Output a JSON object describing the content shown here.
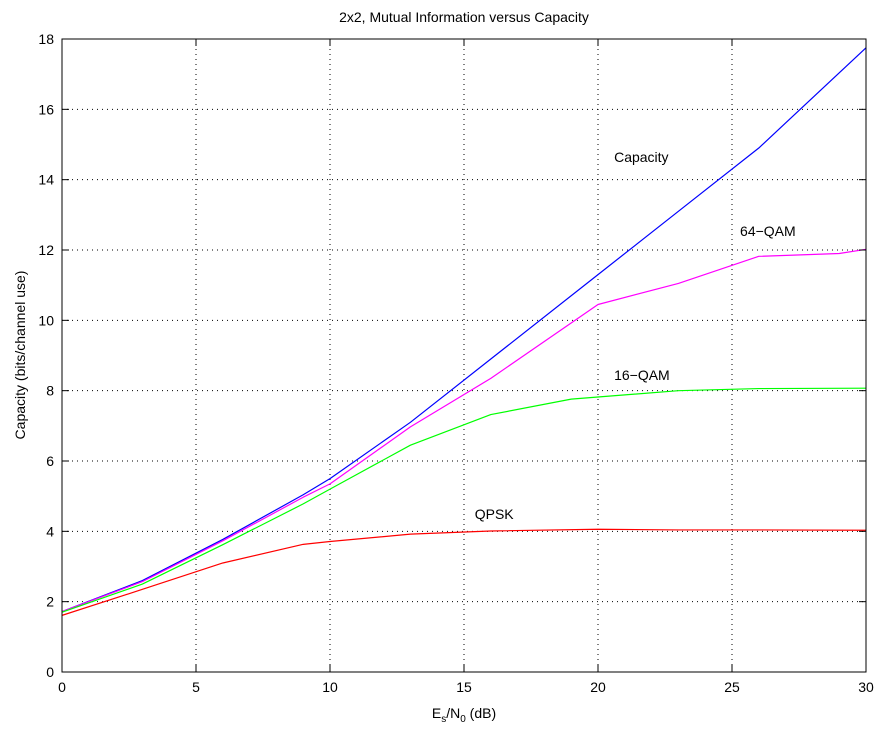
{
  "chart_data": {
    "type": "line",
    "title": "2x2, Mutual Information versus Capacity",
    "xlabel": {
      "main": "E",
      "sub1": "s",
      "sep": "/N",
      "sub2": "0",
      "suffix": " (dB)"
    },
    "ylabel": "Capacity (bits/channel use)",
    "xlim": [
      0,
      30
    ],
    "ylim": [
      0,
      18
    ],
    "xticks": [
      0,
      5,
      10,
      15,
      20,
      25,
      30
    ],
    "yticks": [
      0,
      2,
      4,
      6,
      8,
      10,
      12,
      14,
      16,
      18
    ],
    "grid": true,
    "legend": "none",
    "series": [
      {
        "name": "Capacity",
        "color": "#0000ff",
        "x": [
          0,
          3,
          6,
          9,
          10,
          13,
          16,
          20,
          23,
          26,
          30
        ],
        "y": [
          1.72,
          2.6,
          3.77,
          5.04,
          5.5,
          7.1,
          8.9,
          11.3,
          13.1,
          14.9,
          17.75
        ]
      },
      {
        "name": "64−QAM",
        "color": "#ff00ff",
        "x": [
          0,
          3,
          6,
          9,
          10,
          13,
          16,
          20,
          23,
          26,
          29,
          30
        ],
        "y": [
          1.72,
          2.57,
          3.73,
          4.97,
          5.35,
          6.97,
          8.35,
          10.45,
          11.05,
          11.82,
          11.9,
          12.02
        ]
      },
      {
        "name": "16−QAM",
        "color": "#00ff00",
        "x": [
          0,
          3,
          6,
          9,
          10,
          13,
          16,
          19,
          20,
          23,
          26,
          30
        ],
        "y": [
          1.7,
          2.5,
          3.62,
          4.78,
          5.2,
          6.45,
          7.32,
          7.76,
          7.82,
          8.0,
          8.06,
          8.07
        ]
      },
      {
        "name": "QPSK",
        "color": "#ff0000",
        "x": [
          0,
          3,
          6,
          9,
          10,
          13,
          16,
          20,
          23,
          26,
          30
        ],
        "y": [
          1.61,
          2.35,
          3.1,
          3.63,
          3.71,
          3.92,
          4.01,
          4.06,
          4.04,
          4.04,
          4.03
        ]
      }
    ],
    "annotations": [
      {
        "text": "Capacity",
        "x": 20.6,
        "y": 14.5
      },
      {
        "text": "64−QAM",
        "x": 25.3,
        "y": 12.4
      },
      {
        "text": "16−QAM",
        "x": 20.6,
        "y": 8.3
      },
      {
        "text": "QPSK",
        "x": 15.4,
        "y": 4.35
      }
    ]
  }
}
